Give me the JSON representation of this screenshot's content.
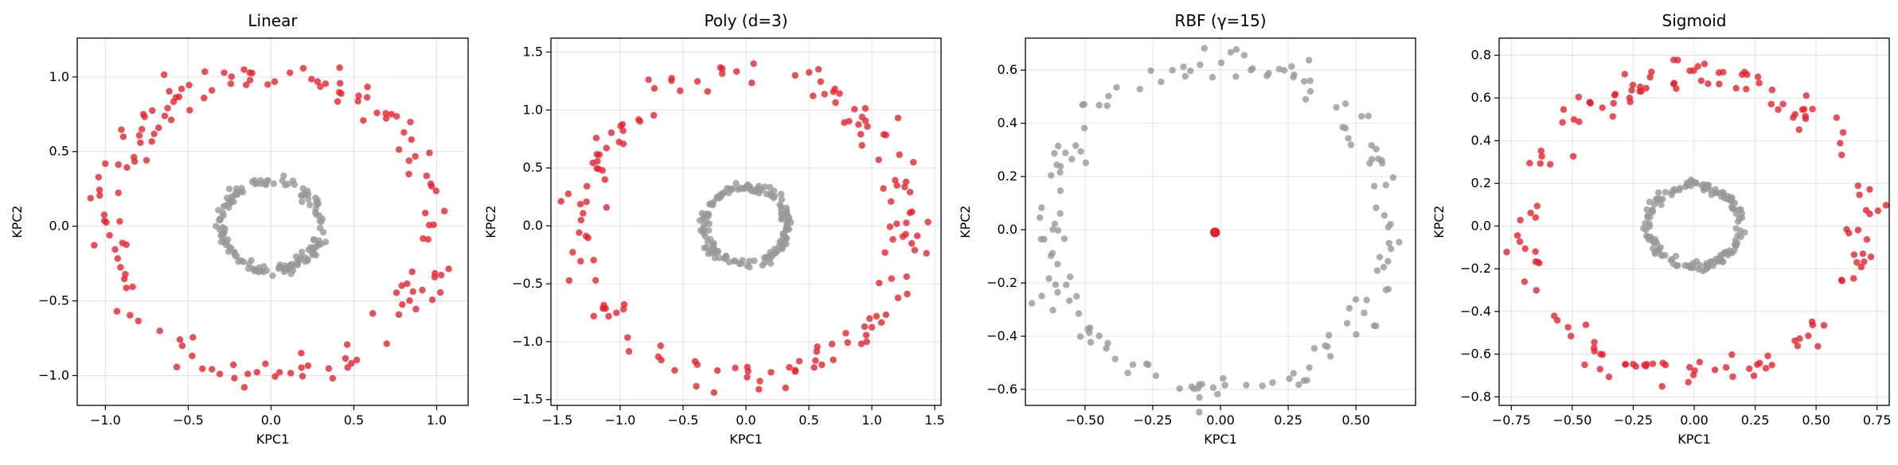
{
  "colors": {
    "outer": "#e8212b",
    "inner": "#999999"
  },
  "chart_data": [
    {
      "type": "scatter",
      "title": "Linear",
      "xlabel": "KPC1",
      "ylabel": "KPC2",
      "xlim": [
        -1.17,
        1.19
      ],
      "ylim": [
        -1.2,
        1.26
      ],
      "xticks": [
        -1.0,
        -0.5,
        0.0,
        0.5,
        1.0
      ],
      "xtick_labels": [
        "−1.0",
        "−0.5",
        "0.0",
        "0.5",
        "1.0"
      ],
      "yticks": [
        -1.0,
        -0.5,
        0.0,
        0.5,
        1.0
      ],
      "ytick_labels": [
        "−1.0",
        "−0.5",
        "0.0",
        "0.5",
        "1.0"
      ],
      "grid": true,
      "series": [
        {
          "color": "#999999",
          "shape": "ring",
          "center": [
            0,
            0
          ],
          "r": 0.3,
          "n": 150,
          "points": []
        },
        {
          "color": "#e8212b",
          "shape": "ring",
          "center": [
            0,
            0
          ],
          "r": 1.0,
          "n": 150,
          "points": []
        }
      ]
    },
    {
      "type": "scatter",
      "title": "Poly (d=3)",
      "xlabel": "KPC1",
      "ylabel": "KPC2",
      "xlim": [
        -1.55,
        1.55
      ],
      "ylim": [
        -1.55,
        1.62
      ],
      "xticks": [
        -1.5,
        -1.0,
        -0.5,
        0.0,
        0.5,
        1.0,
        1.5
      ],
      "xtick_labels": [
        "−1.5",
        "−1.0",
        "−0.5",
        "0.0",
        "0.5",
        "1.0",
        "1.5"
      ],
      "yticks": [
        -1.5,
        -1.0,
        -0.5,
        0.0,
        0.5,
        1.0,
        1.5
      ],
      "ytick_labels": [
        "−1.5",
        "−1.0",
        "−0.5",
        "0.0",
        "0.5",
        "1.0",
        "1.5"
      ],
      "grid": true,
      "series": [
        {
          "color": "#999999",
          "shape": "ring",
          "center": [
            0,
            0
          ],
          "r": 0.33,
          "n": 150,
          "points": []
        },
        {
          "color": "#e8212b",
          "shape": "ring",
          "center": [
            0,
            0
          ],
          "r": 1.3,
          "n": 150,
          "points": []
        }
      ]
    },
    {
      "type": "scatter",
      "title": "RBF (γ=15)",
      "xlabel": "KPC1",
      "ylabel": "KPC2",
      "xlim": [
        -0.72,
        0.72
      ],
      "ylim": [
        -0.66,
        0.72
      ],
      "xticks": [
        -0.5,
        -0.25,
        0.0,
        0.25,
        0.5
      ],
      "xtick_labels": [
        "−0.50",
        "−0.25",
        "0.00",
        "0.25",
        "0.50"
      ],
      "yticks": [
        -0.6,
        -0.4,
        -0.2,
        0.0,
        0.2,
        0.4,
        0.6
      ],
      "ytick_labels": [
        "−0.6",
        "−0.4",
        "−0.2",
        "0.0",
        "0.2",
        "0.4",
        "0.6"
      ],
      "grid": true,
      "series": [
        {
          "color": "#999999",
          "shape": "ring",
          "center": [
            0,
            0.02
          ],
          "r": 0.62,
          "n": 150,
          "points": []
        },
        {
          "color": "#e8212b",
          "shape": "cluster",
          "center": [
            -0.02,
            -0.01
          ],
          "r": 0.005,
          "n": 150,
          "points": []
        }
      ]
    },
    {
      "type": "scatter",
      "title": "Sigmoid",
      "xlabel": "KPC1",
      "ylabel": "KPC2",
      "xlim": [
        -0.8,
        0.8
      ],
      "ylim": [
        -0.84,
        0.88
      ],
      "xticks": [
        -0.75,
        -0.5,
        -0.25,
        0.0,
        0.25,
        0.5,
        0.75
      ],
      "xtick_labels": [
        "−0.75",
        "−0.50",
        "−0.25",
        "0.00",
        "0.25",
        "0.50",
        "0.75"
      ],
      "yticks": [
        -0.8,
        -0.6,
        -0.4,
        -0.2,
        0.0,
        0.2,
        0.4,
        0.6,
        0.8
      ],
      "ytick_labels": [
        "−0.8",
        "−0.6",
        "−0.4",
        "−0.2",
        "0.0",
        "0.2",
        "0.4",
        "0.6",
        "0.8"
      ],
      "grid": true,
      "series": [
        {
          "color": "#999999",
          "shape": "ring",
          "center": [
            0,
            0
          ],
          "r": 0.19,
          "n": 150,
          "points": []
        },
        {
          "color": "#e8212b",
          "shape": "ring",
          "center": [
            0,
            0
          ],
          "r": 0.7,
          "n": 150,
          "points": []
        }
      ]
    }
  ]
}
